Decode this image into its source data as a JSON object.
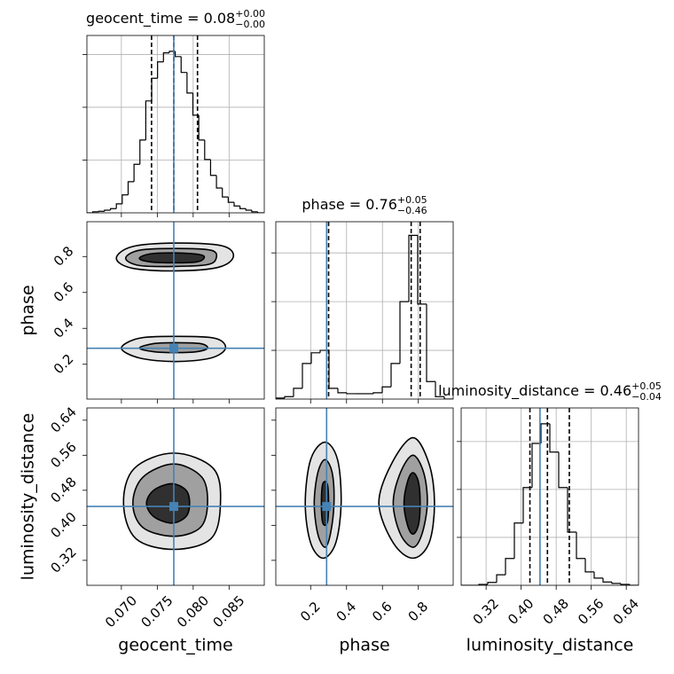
{
  "chart_data": [
    {
      "type": "histogram",
      "title": "geocent_time = 0.08",
      "title_sup": "+0.00",
      "title_sub": "−0.00",
      "bins": [
        0.0652,
        0.06602,
        0.06684,
        0.06766,
        0.06848,
        0.0693,
        0.07012,
        0.07094,
        0.07176,
        0.07258,
        0.0734,
        0.07422,
        0.07504,
        0.07586,
        0.07668,
        0.0775,
        0.07832,
        0.07914,
        0.07996,
        0.08078,
        0.0816,
        0.08242,
        0.08324,
        0.08406,
        0.08488,
        0.0857,
        0.08652,
        0.08734,
        0.08816,
        0.08898,
        0.0898
      ],
      "values": [
        0,
        0.02,
        0.03,
        0.05,
        0.08,
        0.17,
        0.34,
        0.59,
        0.92,
        1.38,
        2.12,
        2.55,
        2.86,
        3.03,
        3.06,
        2.96,
        2.66,
        2.27,
        1.85,
        1.38,
        1.01,
        0.71,
        0.47,
        0.3,
        0.2,
        0.13,
        0.08,
        0.05,
        0.02,
        0
      ],
      "color": "#000000",
      "xlim": [
        0.0652,
        0.0899
      ],
      "xticks": [
        0.07,
        0.075,
        0.08,
        0.085
      ],
      "ylim": [
        0,
        3.36
      ],
      "yticks": [
        1,
        2,
        3
      ],
      "grid": true,
      "quantiles": [
        0.0742,
        0.0773,
        0.0806
      ],
      "truth": 0.0773,
      "truth_color": "#4682b4"
    },
    {
      "type": "contour",
      "ylabel": "phase",
      "xlim": [
        0.0652,
        0.0899
      ],
      "xticks": [
        0.07,
        0.075,
        0.08,
        0.085
      ],
      "ylim": [
        0.006,
        0.994
      ],
      "yticks": [
        0.2,
        0.4,
        0.6,
        0.8
      ],
      "grid": false,
      "line_color": "#000000",
      "contours": [
        {
          "fill": "#e4e4e4",
          "x": [
            0.0693,
            0.0715,
            0.0775,
            0.084,
            0.0856,
            0.0835,
            0.0775,
            0.0715
          ],
          "y": [
            0.79,
            0.855,
            0.875,
            0.86,
            0.8,
            0.74,
            0.72,
            0.735
          ]
        },
        {
          "fill": "#a0a0a0",
          "x": [
            0.0706,
            0.0725,
            0.0775,
            0.0825,
            0.0832,
            0.082,
            0.0775,
            0.0725
          ],
          "y": [
            0.79,
            0.835,
            0.845,
            0.835,
            0.79,
            0.755,
            0.745,
            0.75
          ]
        },
        {
          "fill": "#303030",
          "x": [
            0.0725,
            0.074,
            0.0775,
            0.081,
            0.0815,
            0.0805,
            0.0775,
            0.074
          ],
          "y": [
            0.79,
            0.815,
            0.82,
            0.81,
            0.79,
            0.77,
            0.765,
            0.77
          ]
        },
        {
          "fill": "#e4e4e4",
          "x": [
            0.07,
            0.0725,
            0.0775,
            0.083,
            0.0845,
            0.0825,
            0.0775,
            0.0725
          ],
          "y": [
            0.29,
            0.345,
            0.355,
            0.345,
            0.29,
            0.235,
            0.215,
            0.235
          ]
        },
        {
          "fill": "#a0a0a0",
          "x": [
            0.0725,
            0.0745,
            0.0775,
            0.081,
            0.082,
            0.0805,
            0.0775,
            0.0745
          ],
          "y": [
            0.29,
            0.315,
            0.32,
            0.315,
            0.29,
            0.27,
            0.265,
            0.27
          ]
        }
      ],
      "truth_x": 0.0773,
      "truth_y": 0.289,
      "truth_color": "#4682b4"
    },
    {
      "type": "histogram",
      "title": "phase = 0.76",
      "title_sup": "+0.05",
      "title_sub": "−0.46",
      "bins": [
        0.006,
        0.0554,
        0.1048,
        0.1542,
        0.2036,
        0.253,
        0.3024,
        0.3518,
        0.4012,
        0.4506,
        0.5,
        0.5494,
        0.5988,
        0.6482,
        0.6976,
        0.747,
        0.7964,
        0.8458,
        0.8952,
        0.9446,
        0.994
      ],
      "values": [
        0.02,
        0.05,
        0.22,
        0.73,
        0.95,
        1.0,
        0.22,
        0.13,
        0.11,
        0.11,
        0.11,
        0.13,
        0.25,
        0.73,
        2.0,
        3.36,
        1.95,
        0.36,
        0.05,
        0
      ],
      "color": "#000000",
      "xlim": [
        0.006,
        0.994
      ],
      "xticks": [
        0.2,
        0.4,
        0.6,
        0.8
      ],
      "ylim": [
        0,
        3.64
      ],
      "yticks": [
        1,
        2,
        3
      ],
      "grid": true,
      "quantiles": [
        0.3,
        0.76,
        0.81
      ],
      "truth": 0.289,
      "truth_color": "#4682b4"
    },
    {
      "type": "contour",
      "xlabel": "geocent_time",
      "ylabel": "luminosity_distance",
      "xlim": [
        0.0652,
        0.0899
      ],
      "xticks": [
        {
          "value": 0.07,
          "label": "0.070"
        },
        0.075,
        {
          "value": 0.08,
          "label": "0.080"
        },
        0.085
      ],
      "ylim": [
        0.263,
        0.668
      ],
      "yticks": [
        0.32,
        {
          "value": 0.4,
          "label": "0.40"
        },
        0.48,
        0.56,
        0.64
      ],
      "grid": false,
      "line_color": "#000000",
      "contours": [
        {
          "fill": "#e4e4e4",
          "x": [
            0.0703,
            0.0718,
            0.0773,
            0.0828,
            0.0838,
            0.0825,
            0.0773,
            0.072
          ],
          "y": [
            0.45,
            0.53,
            0.565,
            0.53,
            0.45,
            0.37,
            0.345,
            0.37
          ]
        },
        {
          "fill": "#a0a0a0",
          "x": [
            0.0716,
            0.073,
            0.0773,
            0.0812,
            0.082,
            0.081,
            0.0773,
            0.073
          ],
          "y": [
            0.45,
            0.51,
            0.54,
            0.51,
            0.45,
            0.395,
            0.375,
            0.395
          ]
        },
        {
          "fill": "#303030",
          "x": [
            0.0735,
            0.0745,
            0.077,
            0.079,
            0.0795,
            0.079,
            0.077,
            0.0745
          ],
          "y": [
            0.45,
            0.48,
            0.495,
            0.48,
            0.45,
            0.42,
            0.405,
            0.42
          ]
        }
      ],
      "truth_x": 0.0773,
      "truth_y": 0.443,
      "truth_color": "#4682b4"
    },
    {
      "type": "contour",
      "xlabel": "phase",
      "xlim": [
        0.006,
        0.994
      ],
      "xticks": [
        0.2,
        0.4,
        0.6,
        0.8
      ],
      "ylim": [
        0.263,
        0.668
      ],
      "yticks": [
        0.32,
        0.4,
        0.48,
        0.56,
        0.64
      ],
      "grid": false,
      "line_color": "#000000",
      "contours": [
        {
          "fill": "#e4e4e4",
          "x": [
            0.17,
            0.2,
            0.28,
            0.35,
            0.37,
            0.34,
            0.27,
            0.2
          ],
          "y": [
            0.45,
            0.55,
            0.59,
            0.55,
            0.45,
            0.36,
            0.325,
            0.36
          ]
        },
        {
          "fill": "#a0a0a0",
          "x": [
            0.22,
            0.24,
            0.28,
            0.32,
            0.33,
            0.31,
            0.28,
            0.24
          ],
          "y": [
            0.45,
            0.52,
            0.55,
            0.52,
            0.45,
            0.38,
            0.35,
            0.38
          ]
        },
        {
          "fill": "#303030",
          "x": [
            0.26,
            0.265,
            0.28,
            0.295,
            0.3,
            0.295,
            0.28,
            0.265
          ],
          "y": [
            0.45,
            0.49,
            0.5,
            0.49,
            0.45,
            0.41,
            0.4,
            0.41
          ]
        },
        {
          "fill": "#e4e4e4",
          "x": [
            0.58,
            0.65,
            0.77,
            0.86,
            0.89,
            0.86,
            0.77,
            0.66
          ],
          "y": [
            0.45,
            0.54,
            0.6,
            0.54,
            0.45,
            0.36,
            0.325,
            0.36
          ]
        },
        {
          "fill": "#a0a0a0",
          "x": [
            0.66,
            0.7,
            0.77,
            0.83,
            0.85,
            0.82,
            0.77,
            0.7
          ],
          "y": [
            0.45,
            0.52,
            0.56,
            0.52,
            0.45,
            0.38,
            0.35,
            0.38
          ]
        },
        {
          "fill": "#303030",
          "x": [
            0.72,
            0.74,
            0.77,
            0.8,
            0.81,
            0.8,
            0.77,
            0.74
          ],
          "y": [
            0.45,
            0.5,
            0.52,
            0.5,
            0.45,
            0.4,
            0.38,
            0.4
          ]
        }
      ],
      "truth_x": 0.289,
      "truth_y": 0.443,
      "truth_color": "#4682b4"
    },
    {
      "type": "histogram",
      "title": "luminosity_distance = 0.46",
      "title_sup": "+0.05",
      "title_sub": "−0.04",
      "xlabel": "luminosity_distance",
      "bins": [
        0.263,
        0.28325,
        0.3035,
        0.32375,
        0.344,
        0.36425,
        0.3845,
        0.40475,
        0.425,
        0.44525,
        0.4655,
        0.48575,
        0.506,
        0.52625,
        0.5465,
        0.56675,
        0.587,
        0.60725,
        0.6275,
        0.64775,
        0.668
      ],
      "values": [
        0,
        0,
        0.02,
        0.06,
        0.22,
        0.56,
        1.3,
        2.04,
        2.96,
        3.37,
        2.78,
        2.04,
        1.11,
        0.56,
        0.28,
        0.15,
        0.07,
        0.04,
        0.02,
        0
      ],
      "color": "#000000",
      "xlim": [
        0.263,
        0.668
      ],
      "xticks": [
        0.32,
        {
          "value": 0.4,
          "label": "0.40"
        },
        0.48,
        0.56,
        0.64
      ],
      "ylim": [
        0,
        3.7
      ],
      "yticks": [
        1,
        2,
        3
      ],
      "grid": true,
      "quantiles": [
        0.42,
        0.46,
        0.51
      ],
      "truth": 0.443,
      "truth_color": "#4682b4"
    }
  ]
}
